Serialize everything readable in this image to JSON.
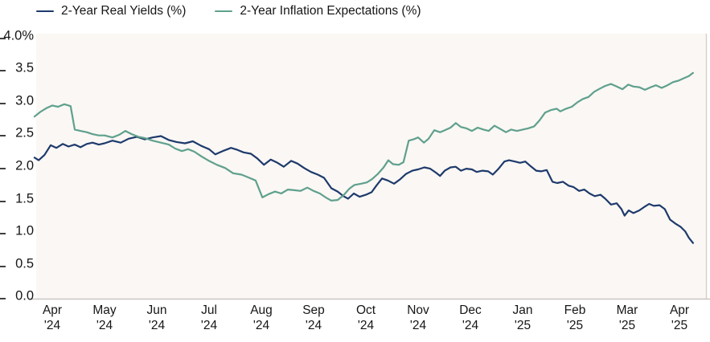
{
  "chart_data": {
    "type": "line",
    "legend_position": "top",
    "grid": false,
    "plot_background": "#faf7f4",
    "axis_line_color": "#c9c5c2",
    "y_axis": {
      "unit": "%",
      "min": 0.0,
      "max": 4.0
    },
    "y_ticks": [
      {
        "label": "4.0%",
        "value": 4.0
      },
      {
        "label": "3.5",
        "value": 3.5
      },
      {
        "label": "3.0",
        "value": 3.0
      },
      {
        "label": "2.5",
        "value": 2.5
      },
      {
        "label": "2.0",
        "value": 2.0
      },
      {
        "label": "1.5",
        "value": 1.5
      },
      {
        "label": "1.0",
        "value": 1.0
      },
      {
        "label": "0.5",
        "value": 0.5
      },
      {
        "label": "0.0",
        "value": 0.0
      }
    ],
    "x_ticks": [
      {
        "month": "Apr",
        "year": "'24"
      },
      {
        "month": "May",
        "year": "'24"
      },
      {
        "month": "Jun",
        "year": "'24"
      },
      {
        "month": "Jul",
        "year": "'24"
      },
      {
        "month": "Aug",
        "year": "'24"
      },
      {
        "month": "Sep",
        "year": "'24"
      },
      {
        "month": "Oct",
        "year": "'24"
      },
      {
        "month": "Nov",
        "year": "'24"
      },
      {
        "month": "Dec",
        "year": "'24"
      },
      {
        "month": "Jan",
        "year": "'25"
      },
      {
        "month": "Feb",
        "year": "'25"
      },
      {
        "month": "Mar",
        "year": "'25"
      },
      {
        "month": "Apr",
        "year": "'25"
      }
    ],
    "x_unit": "months offset from Apr 2024 tick (1 unit = 1 month)",
    "series": [
      {
        "name": "2-Year Real Yields (%)",
        "color": "#1e3a6c",
        "points": [
          [
            -0.34,
            2.13
          ],
          [
            -0.26,
            2.09
          ],
          [
            -0.15,
            2.17
          ],
          [
            -0.03,
            2.32
          ],
          [
            0.08,
            2.28
          ],
          [
            0.2,
            2.34
          ],
          [
            0.31,
            2.3
          ],
          [
            0.43,
            2.33
          ],
          [
            0.54,
            2.29
          ],
          [
            0.66,
            2.34
          ],
          [
            0.77,
            2.36
          ],
          [
            0.89,
            2.33
          ],
          [
            1.0,
            2.35
          ],
          [
            1.15,
            2.39
          ],
          [
            1.31,
            2.36
          ],
          [
            1.46,
            2.42
          ],
          [
            1.62,
            2.45
          ],
          [
            1.77,
            2.41
          ],
          [
            1.92,
            2.44
          ],
          [
            2.08,
            2.46
          ],
          [
            2.23,
            2.4
          ],
          [
            2.38,
            2.37
          ],
          [
            2.54,
            2.35
          ],
          [
            2.69,
            2.38
          ],
          [
            2.85,
            2.31
          ],
          [
            3.0,
            2.26
          ],
          [
            3.12,
            2.18
          ],
          [
            3.26,
            2.23
          ],
          [
            3.42,
            2.28
          ],
          [
            3.54,
            2.25
          ],
          [
            3.66,
            2.21
          ],
          [
            3.8,
            2.19
          ],
          [
            3.92,
            2.12
          ],
          [
            4.05,
            2.02
          ],
          [
            4.18,
            2.1
          ],
          [
            4.31,
            2.05
          ],
          [
            4.43,
            1.99
          ],
          [
            4.57,
            2.08
          ],
          [
            4.69,
            2.04
          ],
          [
            4.82,
            1.97
          ],
          [
            4.95,
            1.91
          ],
          [
            5.08,
            1.87
          ],
          [
            5.2,
            1.82
          ],
          [
            5.34,
            1.66
          ],
          [
            5.46,
            1.61
          ],
          [
            5.57,
            1.54
          ],
          [
            5.66,
            1.5
          ],
          [
            5.77,
            1.58
          ],
          [
            5.88,
            1.53
          ],
          [
            6.0,
            1.56
          ],
          [
            6.11,
            1.6
          ],
          [
            6.2,
            1.7
          ],
          [
            6.31,
            1.81
          ],
          [
            6.42,
            1.78
          ],
          [
            6.54,
            1.73
          ],
          [
            6.66,
            1.8
          ],
          [
            6.77,
            1.88
          ],
          [
            6.89,
            1.93
          ],
          [
            7.0,
            1.95
          ],
          [
            7.12,
            1.98
          ],
          [
            7.23,
            1.96
          ],
          [
            7.34,
            1.9
          ],
          [
            7.42,
            1.85
          ],
          [
            7.51,
            1.93
          ],
          [
            7.62,
            1.98
          ],
          [
            7.72,
            1.99
          ],
          [
            7.82,
            1.93
          ],
          [
            7.92,
            1.96
          ],
          [
            8.03,
            1.95
          ],
          [
            8.12,
            1.91
          ],
          [
            8.23,
            1.93
          ],
          [
            8.34,
            1.92
          ],
          [
            8.43,
            1.87
          ],
          [
            8.54,
            1.96
          ],
          [
            8.65,
            2.07
          ],
          [
            8.74,
            2.09
          ],
          [
            8.85,
            2.07
          ],
          [
            8.95,
            2.05
          ],
          [
            9.05,
            2.07
          ],
          [
            9.15,
            2.0
          ],
          [
            9.26,
            1.93
          ],
          [
            9.35,
            1.92
          ],
          [
            9.46,
            1.94
          ],
          [
            9.57,
            1.76
          ],
          [
            9.66,
            1.74
          ],
          [
            9.77,
            1.76
          ],
          [
            9.88,
            1.7
          ],
          [
            9.97,
            1.68
          ],
          [
            10.08,
            1.62
          ],
          [
            10.18,
            1.64
          ],
          [
            10.28,
            1.58
          ],
          [
            10.38,
            1.54
          ],
          [
            10.49,
            1.56
          ],
          [
            10.58,
            1.5
          ],
          [
            10.69,
            1.41
          ],
          [
            10.8,
            1.43
          ],
          [
            10.89,
            1.34
          ],
          [
            10.95,
            1.24
          ],
          [
            11.03,
            1.32
          ],
          [
            11.12,
            1.28
          ],
          [
            11.23,
            1.32
          ],
          [
            11.32,
            1.37
          ],
          [
            11.42,
            1.42
          ],
          [
            11.51,
            1.39
          ],
          [
            11.62,
            1.4
          ],
          [
            11.72,
            1.34
          ],
          [
            11.82,
            1.18
          ],
          [
            11.92,
            1.12
          ],
          [
            12.02,
            1.07
          ],
          [
            12.11,
            1.0
          ],
          [
            12.18,
            0.9
          ],
          [
            12.26,
            0.82
          ]
        ]
      },
      {
        "name": "2-Year Inflation Expectations (%)",
        "color": "#5fa08d",
        "points": [
          [
            -0.34,
            2.76
          ],
          [
            -0.23,
            2.83
          ],
          [
            -0.11,
            2.89
          ],
          [
            0.0,
            2.93
          ],
          [
            0.11,
            2.91
          ],
          [
            0.23,
            2.95
          ],
          [
            0.35,
            2.92
          ],
          [
            0.43,
            2.56
          ],
          [
            0.54,
            2.54
          ],
          [
            0.66,
            2.52
          ],
          [
            0.77,
            2.49
          ],
          [
            0.89,
            2.47
          ],
          [
            1.0,
            2.47
          ],
          [
            1.15,
            2.44
          ],
          [
            1.28,
            2.48
          ],
          [
            1.4,
            2.54
          ],
          [
            1.52,
            2.49
          ],
          [
            1.65,
            2.45
          ],
          [
            1.77,
            2.43
          ],
          [
            1.92,
            2.39
          ],
          [
            2.08,
            2.36
          ],
          [
            2.23,
            2.33
          ],
          [
            2.35,
            2.27
          ],
          [
            2.48,
            2.23
          ],
          [
            2.6,
            2.26
          ],
          [
            2.72,
            2.22
          ],
          [
            2.85,
            2.15
          ],
          [
            3.0,
            2.08
          ],
          [
            3.15,
            2.02
          ],
          [
            3.31,
            1.97
          ],
          [
            3.46,
            1.89
          ],
          [
            3.62,
            1.87
          ],
          [
            3.77,
            1.82
          ],
          [
            3.89,
            1.78
          ],
          [
            4.02,
            1.52
          ],
          [
            4.14,
            1.57
          ],
          [
            4.26,
            1.61
          ],
          [
            4.38,
            1.58
          ],
          [
            4.51,
            1.64
          ],
          [
            4.63,
            1.63
          ],
          [
            4.75,
            1.62
          ],
          [
            4.88,
            1.67
          ],
          [
            5.0,
            1.62
          ],
          [
            5.12,
            1.58
          ],
          [
            5.23,
            1.52
          ],
          [
            5.34,
            1.47
          ],
          [
            5.46,
            1.48
          ],
          [
            5.57,
            1.55
          ],
          [
            5.68,
            1.65
          ],
          [
            5.78,
            1.71
          ],
          [
            5.91,
            1.73
          ],
          [
            6.02,
            1.75
          ],
          [
            6.12,
            1.8
          ],
          [
            6.23,
            1.88
          ],
          [
            6.34,
            1.98
          ],
          [
            6.43,
            2.09
          ],
          [
            6.52,
            2.03
          ],
          [
            6.63,
            2.02
          ],
          [
            6.72,
            2.06
          ],
          [
            6.82,
            2.39
          ],
          [
            6.91,
            2.41
          ],
          [
            7.0,
            2.44
          ],
          [
            7.11,
            2.36
          ],
          [
            7.2,
            2.42
          ],
          [
            7.31,
            2.55
          ],
          [
            7.42,
            2.52
          ],
          [
            7.51,
            2.55
          ],
          [
            7.62,
            2.59
          ],
          [
            7.72,
            2.66
          ],
          [
            7.82,
            2.6
          ],
          [
            7.92,
            2.58
          ],
          [
            8.03,
            2.54
          ],
          [
            8.14,
            2.59
          ],
          [
            8.25,
            2.56
          ],
          [
            8.35,
            2.54
          ],
          [
            8.46,
            2.62
          ],
          [
            8.57,
            2.57
          ],
          [
            8.68,
            2.52
          ],
          [
            8.78,
            2.56
          ],
          [
            8.89,
            2.54
          ],
          [
            9.0,
            2.56
          ],
          [
            9.11,
            2.58
          ],
          [
            9.22,
            2.61
          ],
          [
            9.32,
            2.7
          ],
          [
            9.43,
            2.82
          ],
          [
            9.54,
            2.86
          ],
          [
            9.65,
            2.88
          ],
          [
            9.72,
            2.84
          ],
          [
            9.83,
            2.88
          ],
          [
            9.94,
            2.91
          ],
          [
            10.05,
            2.98
          ],
          [
            10.15,
            3.03
          ],
          [
            10.26,
            3.06
          ],
          [
            10.37,
            3.14
          ],
          [
            10.48,
            3.19
          ],
          [
            10.58,
            3.23
          ],
          [
            10.69,
            3.26
          ],
          [
            10.8,
            3.22
          ],
          [
            10.91,
            3.18
          ],
          [
            11.02,
            3.25
          ],
          [
            11.12,
            3.22
          ],
          [
            11.23,
            3.21
          ],
          [
            11.34,
            3.17
          ],
          [
            11.45,
            3.21
          ],
          [
            11.55,
            3.24
          ],
          [
            11.66,
            3.2
          ],
          [
            11.77,
            3.24
          ],
          [
            11.88,
            3.29
          ],
          [
            11.98,
            3.31
          ],
          [
            12.09,
            3.35
          ],
          [
            12.18,
            3.38
          ],
          [
            12.26,
            3.43
          ]
        ]
      }
    ]
  }
}
